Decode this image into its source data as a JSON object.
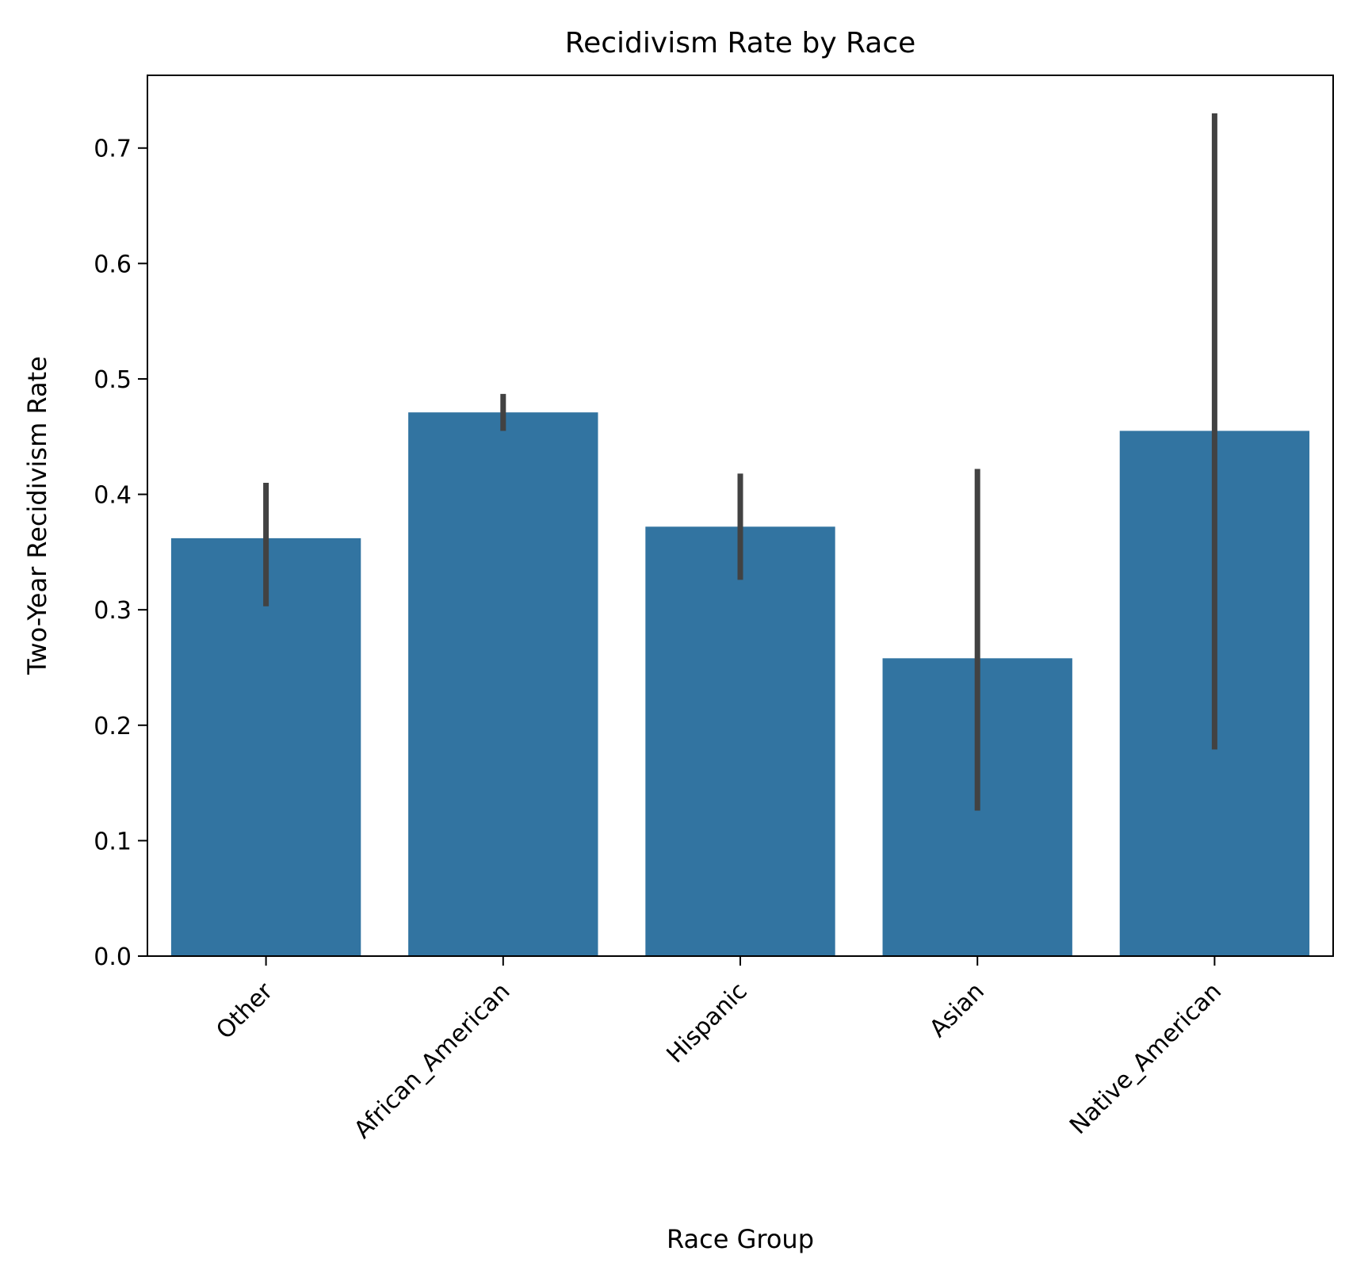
{
  "chart_data": {
    "type": "bar",
    "title": "Recidivism Rate by Race",
    "xlabel": "Race Group",
    "ylabel": "Two-Year Recidivism Rate",
    "categories": [
      "Other",
      "African_American",
      "Hispanic",
      "Asian",
      "Native_American"
    ],
    "values": [
      0.362,
      0.471,
      0.372,
      0.258,
      0.455
    ],
    "error_low": [
      0.303,
      0.455,
      0.326,
      0.126,
      0.179
    ],
    "error_high": [
      0.41,
      0.487,
      0.418,
      0.422,
      0.73
    ],
    "ylim": [
      0,
      0.763
    ],
    "yticks": [
      0.0,
      0.1,
      0.2,
      0.3,
      0.4,
      0.5,
      0.6,
      0.7
    ],
    "ytick_labels": [
      "0.0",
      "0.1",
      "0.2",
      "0.3",
      "0.4",
      "0.5",
      "0.6",
      "0.7"
    ],
    "grid": false,
    "bar_color": "#3274a1",
    "error_color": "#424242"
  }
}
